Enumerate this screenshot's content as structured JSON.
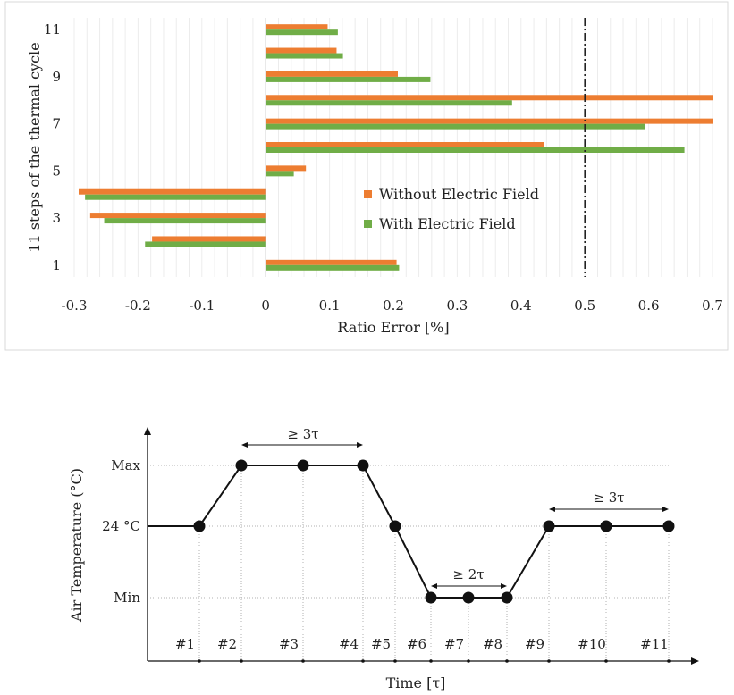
{
  "chart_data": [
    {
      "type": "bar",
      "orientation": "horizontal",
      "ylabel": "11 steps of the thermal cycle",
      "xlabel": "Ratio Error [%]",
      "categories": [
        1,
        2,
        3,
        4,
        5,
        6,
        7,
        8,
        9,
        10,
        11
      ],
      "y_tick_labels": [
        "1",
        "3",
        "5",
        "7",
        "9",
        "11"
      ],
      "x_tick_labels": [
        "-0.3",
        "-0.2",
        "-0.1",
        "0",
        "0.1",
        "0.2",
        "0.3",
        "0.4",
        "0.5",
        "0.6",
        "0.7"
      ],
      "xlim": [
        -0.3,
        0.7
      ],
      "grid": true,
      "reference_line": {
        "x": 0.5,
        "style": "dash-dot"
      },
      "legend_position": "center",
      "series": [
        {
          "name": "Without Electric Field",
          "color": "#ED7D31",
          "values": [
            0.205,
            -0.178,
            -0.275,
            -0.293,
            0.063,
            0.436,
            0.7,
            0.7,
            0.207,
            0.111,
            0.097
          ]
        },
        {
          "name": "With Electric Field",
          "color": "#70AD47",
          "values": [
            0.209,
            -0.189,
            -0.253,
            -0.283,
            0.044,
            0.656,
            0.594,
            0.386,
            0.258,
            0.121,
            0.113
          ]
        }
      ]
    },
    {
      "type": "line",
      "xlabel": "Time [τ]",
      "ylabel": "Air Temperature (°C)",
      "y_levels": [
        "Min",
        "24 °C",
        "Max"
      ],
      "step_labels": [
        "#1",
        "#2",
        "#3",
        "#4",
        "#5",
        "#6",
        "#7",
        "#8",
        "#9",
        "#10",
        "#11"
      ],
      "points": [
        {
          "step": "#1",
          "level": "24 °C"
        },
        {
          "step": "#2",
          "level": "Max"
        },
        {
          "step": "#3",
          "level": "Max"
        },
        {
          "step": "#4",
          "level": "Max"
        },
        {
          "step": "#5",
          "level": "24 °C"
        },
        {
          "step": "#6",
          "level": "Min"
        },
        {
          "step": "#7",
          "level": "Min"
        },
        {
          "step": "#8",
          "level": "Min"
        },
        {
          "step": "#9",
          "level": "24 °C"
        },
        {
          "step": "#10",
          "level": "24 °C"
        },
        {
          "step": "#11",
          "level": "24 °C"
        }
      ],
      "annotations": [
        "≥ 3τ",
        "≥ 2τ",
        "≥ 3τ"
      ]
    }
  ]
}
